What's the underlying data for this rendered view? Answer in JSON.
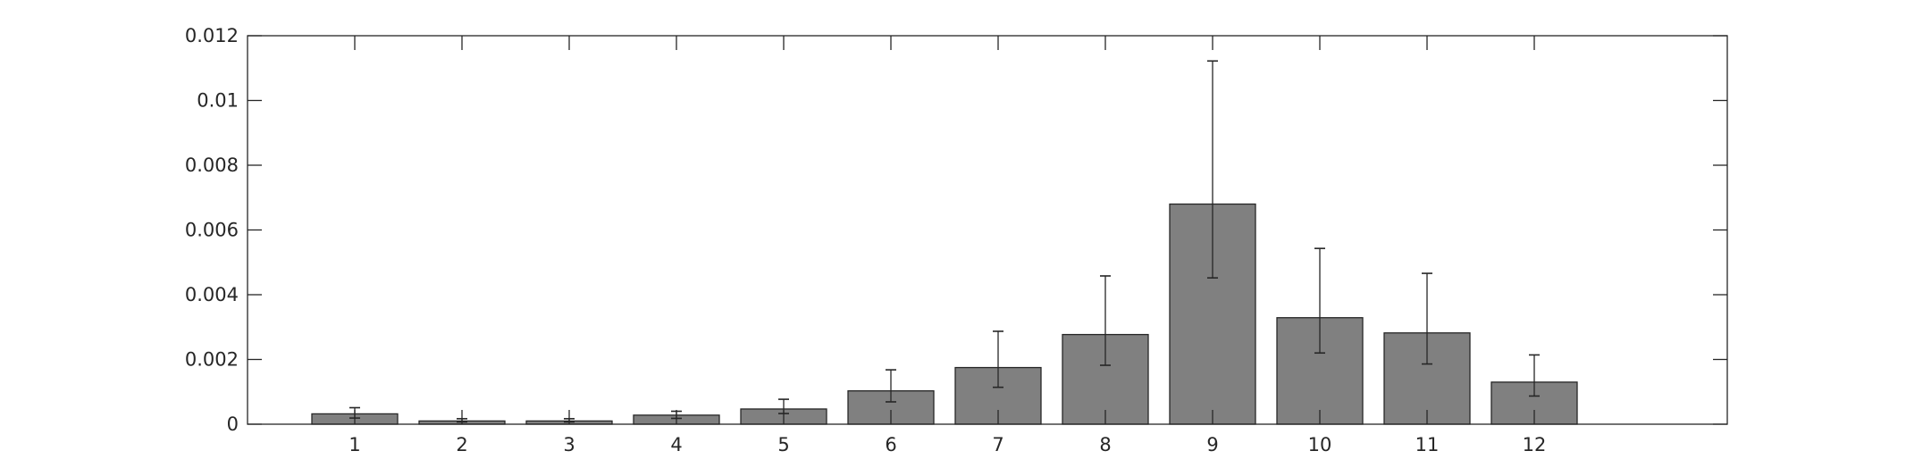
{
  "chart_data": {
    "type": "bar",
    "title": "",
    "xlabel": "",
    "ylabel": "",
    "categories": [
      "1",
      "2",
      "3",
      "4",
      "5",
      "6",
      "7",
      "8",
      "9",
      "10",
      "11",
      "12"
    ],
    "values": [
      0.00032,
      0.0001,
      0.0001,
      0.00028,
      0.00047,
      0.00103,
      0.00175,
      0.00277,
      0.0068,
      0.00329,
      0.00282,
      0.0013
    ],
    "error_low": [
      0.00019,
      7e-05,
      7e-05,
      0.00018,
      0.00033,
      0.00069,
      0.00114,
      0.00182,
      0.00452,
      0.0022,
      0.00186,
      0.00087
    ],
    "error_high": [
      0.00051,
      0.00017,
      0.00017,
      0.0004,
      0.00077,
      0.00168,
      0.00287,
      0.00458,
      0.01122,
      0.00543,
      0.00466,
      0.00214
    ],
    "xlim": [
      0,
      13.8
    ],
    "ylim": [
      0,
      0.012
    ],
    "yticks": [
      0,
      0.002,
      0.004,
      0.006,
      0.008,
      0.01,
      0.012
    ],
    "ytick_labels": [
      "0",
      "0.002",
      "0.004",
      "0.006",
      "0.008",
      "0.01",
      "0.012"
    ],
    "grid": false,
    "bar_color": "#808080",
    "edge_color": "#262626"
  }
}
